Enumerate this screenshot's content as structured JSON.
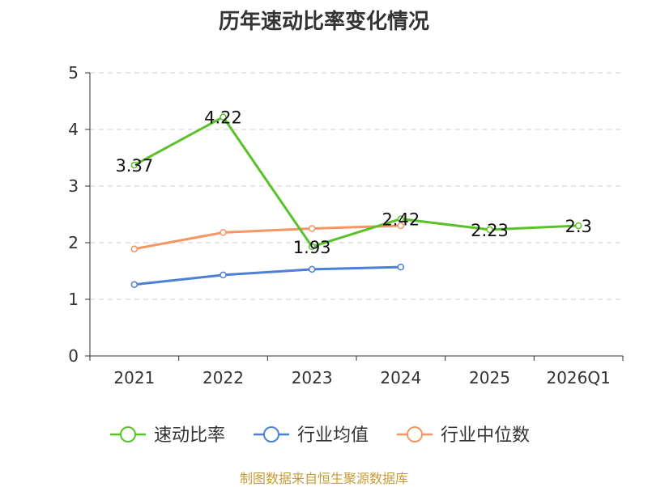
{
  "title": "历年速动比率变化情况",
  "source": "制图数据来自恒生聚源数据库",
  "chart_data": {
    "type": "line",
    "categories": [
      "2021",
      "2022",
      "2023",
      "2024",
      "2025",
      "2026Q1"
    ],
    "ylim": [
      0,
      5
    ],
    "yticks": [
      "0",
      "1",
      "2",
      "3",
      "4",
      "5"
    ],
    "grid": true,
    "legend_position": "bottom",
    "series": [
      {
        "name": "速动比率",
        "color": "#5ac229",
        "values": [
          3.37,
          4.22,
          1.93,
          2.42,
          2.23,
          2.3
        ],
        "labels": [
          "3.37",
          "4.22",
          "1.93",
          "2.42",
          "2.23",
          "2.3"
        ],
        "show_labels": true
      },
      {
        "name": "行业均值",
        "color": "#4c7fd6",
        "values": [
          1.26,
          1.43,
          1.53,
          1.57,
          null,
          null
        ],
        "show_labels": false
      },
      {
        "name": "行业中位数",
        "color": "#f59562",
        "values": [
          1.89,
          2.18,
          2.25,
          2.3,
          null,
          null
        ],
        "show_labels": false
      }
    ]
  }
}
